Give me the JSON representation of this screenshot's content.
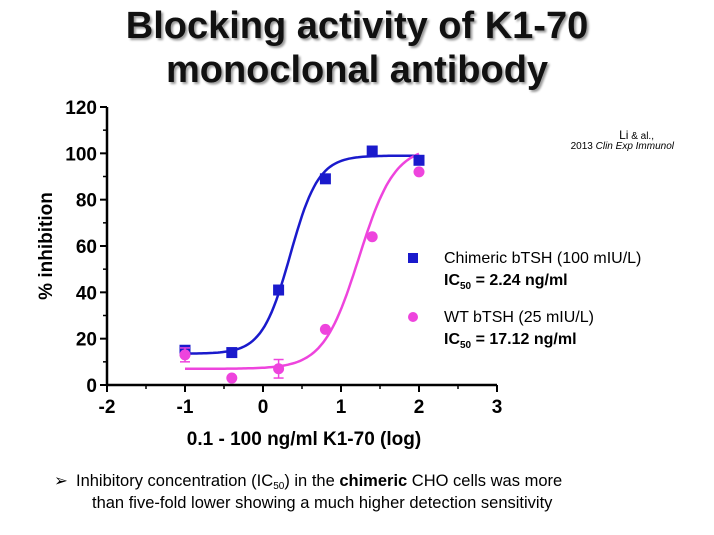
{
  "title_line1": "Blocking activity of K1-70",
  "title_line2": "monoclonal antibody",
  "citation": {
    "authors": "Li",
    "etal": "& al.,",
    "year": "2013",
    "journal": "Clin Exp Immunol"
  },
  "bullet": {
    "arrow": "➢",
    "pre": "Inhibitory concentration (IC",
    "sub": "50",
    "mid": ") in the ",
    "bold": "chimeric",
    "post": " CHO cells was more",
    "line2": "than five-fold lower showing a much higher detection sensitivity"
  },
  "chart_data": {
    "type": "scatter",
    "xlabel": "0.1 - 100 ng/ml K1-70 (log)",
    "ylabel": "% inhibition",
    "xlim": [
      -2,
      3
    ],
    "ylim": [
      0,
      120
    ],
    "xticks": [
      "-2",
      "-1",
      "0",
      "1",
      "2",
      "3"
    ],
    "yticks": [
      "0",
      "20",
      "40",
      "60",
      "80",
      "100",
      "120"
    ],
    "grid": false,
    "legend_position": "right",
    "series": [
      {
        "name": "Chimeric bTSH (100 mIU/L)",
        "ic_prefix": "IC",
        "ic_sub": "50",
        "ic_text": " = 2.24 ng/ml",
        "color": "#1a1acc",
        "marker": "square",
        "x": [
          -1,
          -0.4,
          0.2,
          0.8,
          1.4,
          2.0
        ],
        "y": [
          15,
          14,
          41,
          89,
          101,
          97
        ],
        "curve": {
          "bottom": 13.5,
          "top": 99,
          "logIC50": 0.35,
          "hill": 2.4
        }
      },
      {
        "name": "WT bTSH (25 mIU/L)",
        "ic_prefix": "IC",
        "ic_sub": "50",
        "ic_text": " = 17.12 ng/ml",
        "color": "#ee44dd",
        "marker": "circle",
        "x": [
          -1,
          -0.4,
          0.2,
          0.8,
          1.4,
          2.0
        ],
        "y": [
          13,
          3,
          7,
          24,
          64,
          92
        ],
        "err": [
          3,
          0,
          4,
          0,
          0,
          0
        ],
        "curve": {
          "bottom": 7,
          "top": 103,
          "logIC50": 1.23,
          "hill": 1.9
        }
      }
    ]
  }
}
